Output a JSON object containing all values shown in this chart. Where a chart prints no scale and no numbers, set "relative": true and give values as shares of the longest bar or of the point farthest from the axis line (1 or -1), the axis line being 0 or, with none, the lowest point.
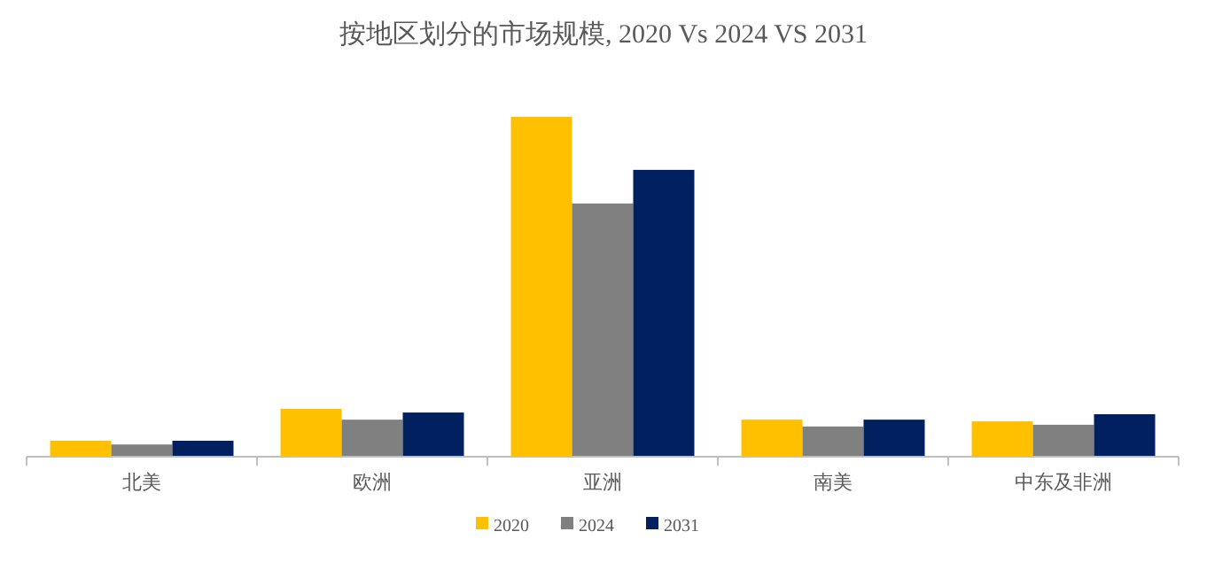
{
  "chart_data": {
    "type": "bar",
    "title": "按地区划分的市场规模, 2020 Vs 2024 VS 2031",
    "relative": true,
    "legend": "bottom",
    "categories": [
      "北美",
      "欧洲",
      "亚洲",
      "南美",
      "中东及非洲"
    ],
    "series": [
      {
        "name": "2020",
        "color": "#ffc000",
        "values": [
          0.047,
          0.141,
          1,
          0.109,
          0.104
        ]
      },
      {
        "name": "2024",
        "color": "#808080",
        "values": [
          0.036,
          0.109,
          0.745,
          0.089,
          0.094
        ]
      },
      {
        "name": "2031",
        "color": "#002060",
        "values": [
          0.047,
          0.13,
          0.844,
          0.109,
          0.125
        ]
      }
    ]
  }
}
